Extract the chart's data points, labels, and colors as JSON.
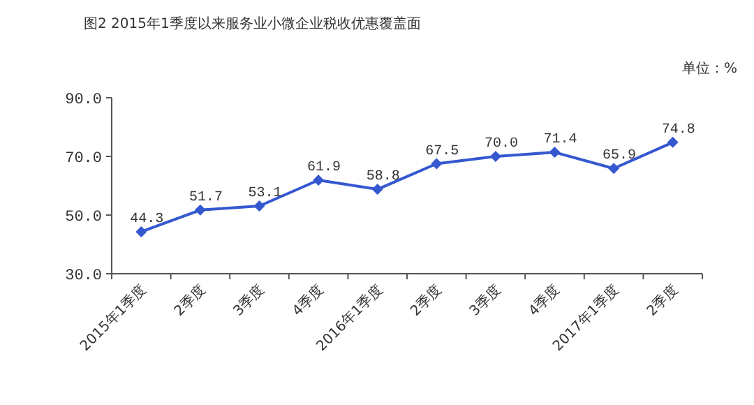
{
  "chart_data": {
    "type": "line",
    "title": "图2 2015年1季度以来服务业小微企业税收优惠覆盖面",
    "annotations": [
      "单位：%"
    ],
    "categories": [
      "2015年1季度",
      "2季度",
      "3季度",
      "4季度",
      "2016年1季度",
      "2季度",
      "3季度",
      "4季度",
      "2017年1季度",
      "2季度"
    ],
    "series": [
      {
        "color": "#3558d0",
        "values": [
          44.3,
          51.7,
          53.1,
          61.9,
          58.8,
          67.5,
          70.0,
          71.4,
          65.9,
          74.8
        ],
        "value_labels": [
          "44.3",
          "51.7",
          "53.1",
          "61.9",
          "58.8",
          "67.5",
          "70.0",
          "71.4",
          "65.9",
          "74.8"
        ]
      }
    ],
    "ylim": [
      30,
      90
    ],
    "yticks": [
      {
        "value": 30,
        "label": "30.0"
      },
      {
        "value": 50,
        "label": "50.0"
      },
      {
        "value": 70,
        "label": "70.0"
      },
      {
        "value": 90,
        "label": "90.0"
      }
    ],
    "marker": "diamond",
    "line_style": "solid",
    "grid": false
  }
}
